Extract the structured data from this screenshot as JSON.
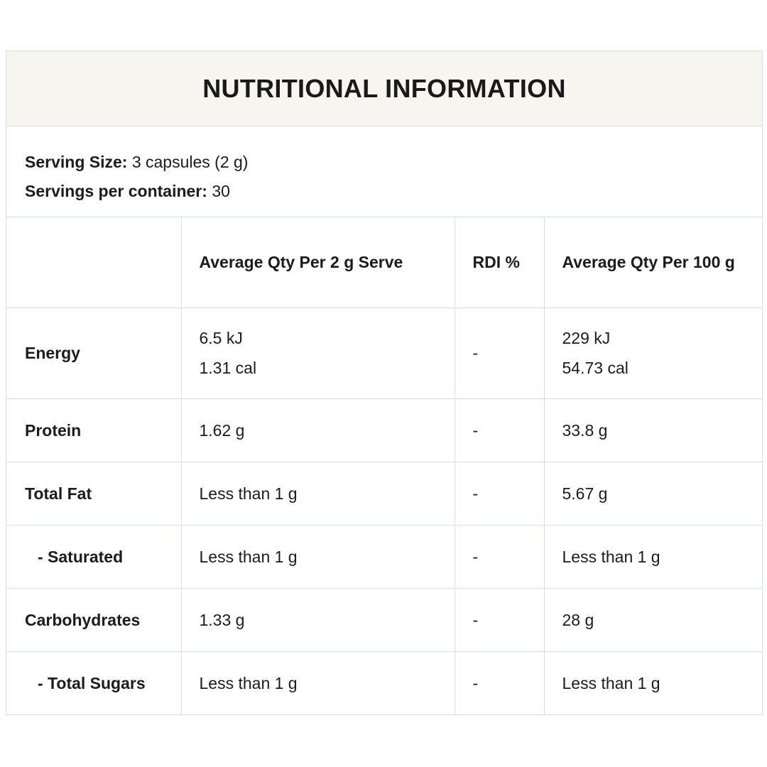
{
  "title": "NUTRITIONAL INFORMATION",
  "serving": {
    "size_label": "Serving Size:",
    "size_value": "3 capsules (2 g)",
    "per_container_label": "Servings per container:",
    "per_container_value": "30"
  },
  "table": {
    "headers": [
      "",
      "Average Qty Per 2 g Serve",
      "RDI %",
      "Average Qty Per 100 g"
    ],
    "energy": {
      "label": "Energy",
      "per_serve_kj": "6.5 kJ",
      "per_serve_cal": "1.31 cal",
      "rdi": "-",
      "per_100_kj": "229 kJ",
      "per_100_cal": "54.73 cal"
    },
    "rows": [
      {
        "label": "Protein",
        "per_serve": "1.62 g",
        "rdi": "-",
        "per_100": "33.8 g"
      },
      {
        "label": "Total Fat",
        "per_serve": "Less than 1 g",
        "rdi": "-",
        "per_100": "5.67 g"
      },
      {
        "label": "- Saturated",
        "per_serve": "Less than 1 g",
        "rdi": "-",
        "per_100": "Less than 1 g"
      },
      {
        "label": "Carbohydrates",
        "per_serve": "1.33 g",
        "rdi": "-",
        "per_100": "28 g"
      },
      {
        "label": "- Total Sugars",
        "per_serve": "Less than 1 g",
        "rdi": "-",
        "per_100": "Less than 1 g"
      }
    ]
  },
  "colors": {
    "border": "#d6dee8",
    "title_background": "#f6f5f0",
    "text": "#1c1c1c"
  }
}
